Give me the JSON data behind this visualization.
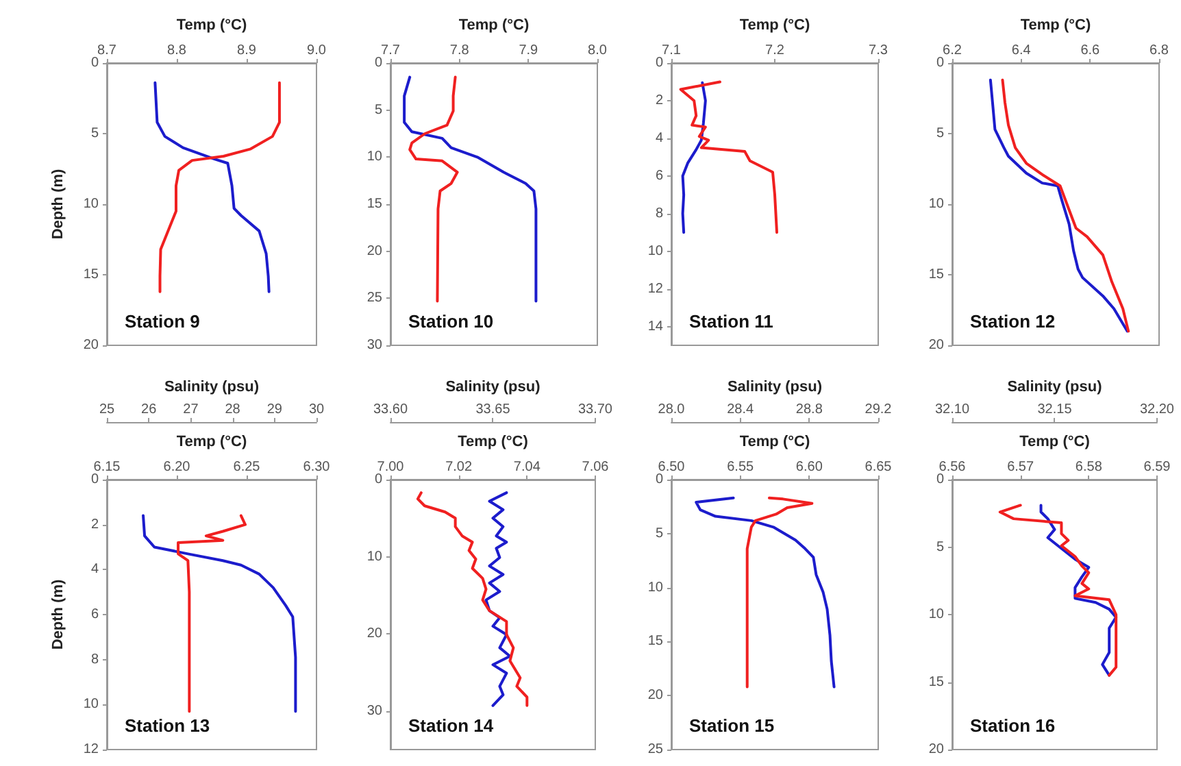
{
  "chart_data": [
    {
      "type": "line",
      "title": "Station 9",
      "xlabel": "Temp (°C)",
      "ylabel": "Depth (m)",
      "xlim": [
        8.7,
        9.0
      ],
      "xticks": [
        8.7,
        8.8,
        8.9,
        {
          "value": 9.0,
          "label": "9.0"
        }
      ],
      "ylim": [
        20,
        0
      ],
      "yticks": [
        0,
        5,
        10,
        15,
        20
      ],
      "series": [
        {
          "color": "#1c1ccc",
          "x": [
            8.769,
            8.772,
            8.783,
            8.809,
            8.854,
            8.873,
            8.879,
            8.882,
            8.892,
            8.918,
            8.928,
            8.931,
            8.932
          ],
          "values": [
            1.4,
            4.2,
            5.2,
            6.0,
            6.8,
            7.1,
            8.7,
            10.3,
            10.8,
            11.9,
            13.5,
            15.1,
            16.2
          ]
        },
        {
          "color": "#f02020",
          "x": [
            8.947,
            8.947,
            8.937,
            8.905,
            8.867,
            8.822,
            8.803,
            8.799,
            8.799,
            8.79,
            8.777,
            8.776,
            8.776
          ],
          "values": [
            1.4,
            4.2,
            5.2,
            6.1,
            6.6,
            6.9,
            7.6,
            8.7,
            10.5,
            11.6,
            13.2,
            15.1,
            16.2
          ]
        }
      ]
    },
    {
      "type": "line",
      "title": "Station 10",
      "xlabel": "Temp (°C)",
      "xlim": [
        7.7,
        8.0
      ],
      "xticks": [
        7.7,
        7.8,
        7.9,
        {
          "value": 8.0,
          "label": "8.0"
        }
      ],
      "ylim": [
        30,
        0
      ],
      "yticks": [
        0,
        5,
        10,
        15,
        20,
        25,
        30
      ],
      "series": [
        {
          "color": "#1c1ccc",
          "x": [
            7.728,
            7.72,
            7.72,
            7.731,
            7.775,
            7.788,
            7.826,
            7.864,
            7.896,
            7.908,
            7.911,
            7.911
          ],
          "values": [
            1.5,
            3.5,
            6.3,
            7.3,
            8.0,
            9.0,
            10.0,
            11.6,
            12.8,
            13.6,
            15.5,
            25.3
          ]
        },
        {
          "color": "#f02020",
          "x": [
            7.794,
            7.791,
            7.791,
            7.782,
            7.75,
            7.731,
            7.728,
            7.737,
            7.775,
            7.797,
            7.788,
            7.772,
            7.769,
            7.768
          ],
          "values": [
            1.5,
            3.5,
            5.1,
            6.6,
            7.5,
            8.5,
            9.2,
            10.2,
            10.4,
            11.6,
            12.8,
            13.6,
            15.5,
            25.3
          ]
        }
      ]
    },
    {
      "type": "line",
      "title": "Station 11",
      "xlabel": "Temp (°C)",
      "xlim": [
        7.1,
        7.3
      ],
      "xticks": [
        7.1,
        7.2,
        7.3
      ],
      "ylim": [
        15,
        0
      ],
      "yticks": [
        0,
        2,
        4,
        6,
        8,
        10,
        12,
        14
      ],
      "series": [
        {
          "color": "#1c1ccc",
          "x": [
            7.13,
            7.133,
            7.131,
            7.129,
            7.124,
            7.116,
            7.111,
            7.112,
            7.111,
            7.112
          ],
          "values": [
            1.05,
            2.0,
            3.2,
            4.1,
            4.6,
            5.3,
            6.0,
            7.0,
            8.0,
            9.0
          ]
        },
        {
          "color": "#f02020",
          "x": [
            7.147,
            7.109,
            7.122,
            7.124,
            7.12,
            7.133,
            7.127,
            7.136,
            7.129,
            7.171,
            7.176,
            7.198,
            7.2,
            7.202
          ],
          "values": [
            1.0,
            1.4,
            2.0,
            2.8,
            3.3,
            3.4,
            3.9,
            4.1,
            4.5,
            4.7,
            5.2,
            5.8,
            7.0,
            9.0
          ]
        }
      ]
    },
    {
      "type": "line",
      "title": "Station 12",
      "xlabel": "Temp (°C)",
      "xlim": [
        6.2,
        6.8
      ],
      "xticks": [
        6.2,
        6.4,
        6.6,
        6.8
      ],
      "ylim": [
        20,
        0
      ],
      "yticks": [
        0,
        5,
        10,
        15,
        20
      ],
      "series": [
        {
          "color": "#1c1ccc",
          "x": [
            6.311,
            6.317,
            6.324,
            6.35,
            6.363,
            6.415,
            6.461,
            6.506,
            6.519,
            6.539,
            6.552,
            6.565,
            6.578,
            6.637,
            6.669,
            6.708
          ],
          "values": [
            1.2,
            2.8,
            4.7,
            6.0,
            6.6,
            7.8,
            8.5,
            8.7,
            9.8,
            11.4,
            13.3,
            14.6,
            15.2,
            16.5,
            17.4,
            19.0
          ]
        },
        {
          "color": "#f02020",
          "x": [
            6.346,
            6.353,
            6.363,
            6.383,
            6.415,
            6.461,
            6.513,
            6.539,
            6.559,
            6.591,
            6.637,
            6.663,
            6.695,
            6.711
          ],
          "values": [
            1.2,
            2.8,
            4.4,
            6.0,
            7.1,
            7.9,
            8.7,
            10.4,
            11.7,
            12.3,
            13.6,
            15.5,
            17.4,
            19.0
          ]
        }
      ]
    },
    {
      "type": "line",
      "title": "Station 13",
      "xlabel": "Temp (°C)",
      "x2label": "Salinity (psu)",
      "ylabel": "Depth (m)",
      "xlim": [
        6.15,
        6.3
      ],
      "xticks": [
        6.15,
        {
          "value": 6.2,
          "label": "6.20"
        },
        6.25,
        {
          "value": 6.3,
          "label": "6.30"
        }
      ],
      "x2lim": [
        25,
        30
      ],
      "x2ticks": [
        25,
        26,
        27,
        28,
        29,
        30
      ],
      "ylim": [
        12,
        0
      ],
      "yticks": [
        0,
        2,
        4,
        6,
        8,
        10,
        12
      ],
      "series": [
        {
          "color": "#1c1ccc",
          "x": [
            6.176,
            6.177,
            6.184,
            6.192,
            6.208,
            6.233,
            6.246,
            6.259,
            6.269,
            6.278,
            6.283,
            6.285,
            6.285
          ],
          "values": [
            1.6,
            2.5,
            3.0,
            3.1,
            3.3,
            3.6,
            3.8,
            4.2,
            4.8,
            5.6,
            6.1,
            7.9,
            10.3
          ]
        },
        {
          "color": "#f02020",
          "x": [
            6.246,
            6.249,
            6.233,
            6.221,
            6.233,
            6.201,
            6.201,
            6.208,
            6.209,
            6.209,
            6.209
          ],
          "values": [
            1.6,
            2.0,
            2.3,
            2.5,
            2.7,
            2.8,
            3.3,
            3.6,
            5.0,
            7.9,
            10.3
          ]
        }
      ]
    },
    {
      "type": "line",
      "title": "Station 14",
      "xlabel": "Temp (°C)",
      "x2label": "Salinity (psu)",
      "xlim": [
        7.0,
        7.06
      ],
      "xticks": [
        {
          "value": 7.0,
          "label": "7.00"
        },
        {
          "value": 7.02,
          "label": "7.02"
        },
        {
          "value": 7.04,
          "label": "7.04"
        },
        {
          "value": 7.06,
          "label": "7.06"
        }
      ],
      "x2lim": [
        33.6,
        33.7
      ],
      "x2ticks": [
        {
          "value": 33.6,
          "label": "33.60"
        },
        33.65,
        {
          "value": 33.7,
          "label": "33.70"
        }
      ],
      "ylim": [
        35,
        0
      ],
      "yticks": [
        0,
        10,
        20,
        30
      ],
      "series": [
        {
          "color": "#1c1ccc",
          "x": [
            7.034,
            7.029,
            7.033,
            7.03,
            7.033,
            7.031,
            7.034,
            7.031,
            7.032,
            7.029,
            7.033,
            7.029,
            7.032,
            7.028,
            7.029,
            7.032,
            7.03,
            7.034,
            7.032,
            7.035,
            7.03,
            7.034,
            7.032,
            7.033,
            7.03
          ],
          "values": [
            1.7,
            2.8,
            3.9,
            5.0,
            6.1,
            7.3,
            8.1,
            8.9,
            10.1,
            11.2,
            12.3,
            13.4,
            14.5,
            15.6,
            17.0,
            17.9,
            19.0,
            20.1,
            21.8,
            22.9,
            24.0,
            25.1,
            26.8,
            27.9,
            29.3
          ]
        },
        {
          "color": "#f02020",
          "x": [
            7.009,
            7.008,
            7.01,
            7.016,
            7.019,
            7.019,
            7.021,
            7.024,
            7.023,
            7.025,
            7.024,
            7.027,
            7.028,
            7.027,
            7.029,
            7.034,
            7.034,
            7.036,
            7.035,
            7.038,
            7.037,
            7.04,
            7.04
          ],
          "values": [
            1.7,
            2.5,
            3.4,
            4.2,
            5.0,
            6.1,
            7.3,
            8.1,
            9.2,
            10.3,
            11.5,
            12.8,
            14.2,
            15.6,
            17.0,
            18.4,
            20.1,
            21.8,
            23.5,
            25.7,
            26.8,
            28.2,
            29.3
          ]
        }
      ]
    },
    {
      "type": "line",
      "title": "Station 15",
      "xlabel": "Temp (°C)",
      "x2label": "Salinity (psu)",
      "xlim": [
        6.5,
        6.65
      ],
      "xticks": [
        {
          "value": 6.5,
          "label": "6.50"
        },
        6.55,
        {
          "value": 6.6,
          "label": "6.60"
        },
        6.65
      ],
      "x2lim": [
        28.0,
        29.2
      ],
      "x2ticks": [
        {
          "value": 28.0,
          "label": "28.0"
        },
        28.4,
        28.8,
        29.2
      ],
      "ylim": [
        25,
        0
      ],
      "yticks": [
        0,
        5,
        10,
        15,
        20,
        25
      ],
      "series": [
        {
          "color": "#1c1ccc",
          "x": [
            6.545,
            6.518,
            6.521,
            6.532,
            6.558,
            6.574,
            6.59,
            6.597,
            6.603,
            6.605,
            6.61,
            6.613,
            6.615,
            6.616,
            6.618
          ],
          "values": [
            1.7,
            2.1,
            2.8,
            3.4,
            3.8,
            4.4,
            5.6,
            6.4,
            7.2,
            8.8,
            10.4,
            12.0,
            14.4,
            16.8,
            19.2
          ]
        },
        {
          "color": "#f02020",
          "x": [
            6.571,
            6.581,
            6.602,
            6.584,
            6.576,
            6.561,
            6.558,
            6.555,
            6.555,
            6.555,
            6.555
          ],
          "values": [
            1.7,
            1.8,
            2.2,
            2.6,
            3.2,
            3.8,
            4.4,
            6.4,
            10.4,
            14.4,
            19.2
          ]
        }
      ]
    },
    {
      "type": "line",
      "title": "Station 16",
      "xlabel": "Temp (°C)",
      "x2label": "Salinity (psu)",
      "xlim": [
        6.56,
        6.59
      ],
      "xticks": [
        6.56,
        6.57,
        6.58,
        6.59
      ],
      "x2lim": [
        32.1,
        32.2
      ],
      "x2ticks": [
        {
          "value": 32.1,
          "label": "32.10"
        },
        32.15,
        {
          "value": 32.2,
          "label": "32.20"
        }
      ],
      "ylim": [
        20,
        0
      ],
      "yticks": [
        0,
        5,
        10,
        15,
        20
      ],
      "series": [
        {
          "color": "#1c1ccc",
          "x": [
            6.573,
            6.573,
            6.574,
            6.575,
            6.574,
            6.576,
            6.578,
            6.58,
            6.579,
            6.578,
            6.578,
            6.581,
            6.583,
            6.584,
            6.583,
            6.583,
            6.583,
            6.582,
            6.583
          ],
          "values": [
            1.9,
            2.4,
            2.9,
            3.7,
            4.3,
            5.1,
            5.9,
            6.5,
            7.2,
            8.0,
            8.8,
            9.1,
            9.6,
            10.2,
            11.0,
            11.8,
            12.8,
            13.7,
            14.5
          ]
        },
        {
          "color": "#f02020",
          "x": [
            6.57,
            6.567,
            6.569,
            6.576,
            6.576,
            6.577,
            6.576,
            6.578,
            6.579,
            6.58,
            6.579,
            6.58,
            6.578,
            6.583,
            6.584,
            6.584,
            6.584,
            6.583
          ],
          "values": [
            1.9,
            2.4,
            2.9,
            3.2,
            4.0,
            4.5,
            4.9,
            5.7,
            6.4,
            6.9,
            7.7,
            8.1,
            8.6,
            8.9,
            10.0,
            12.0,
            13.9,
            14.5
          ]
        }
      ]
    }
  ]
}
